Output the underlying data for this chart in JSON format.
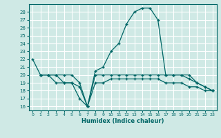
{
  "xlabel": "Humidex (Indice chaleur)",
  "ylabel": "",
  "bg_color": "#cfe9e5",
  "line_color": "#006666",
  "grid_color": "#ffffff",
  "xlim": [
    -0.5,
    23.5
  ],
  "ylim": [
    15.5,
    29
  ],
  "yticks": [
    16,
    17,
    18,
    19,
    20,
    21,
    22,
    23,
    24,
    25,
    26,
    27,
    28
  ],
  "xticks": [
    0,
    1,
    2,
    3,
    4,
    5,
    6,
    7,
    8,
    9,
    10,
    11,
    12,
    13,
    14,
    15,
    16,
    17,
    18,
    19,
    20,
    21,
    22,
    23
  ],
  "series": [
    {
      "x": [
        0,
        1,
        2,
        3,
        4,
        5,
        6,
        7,
        8,
        9,
        10,
        11,
        12,
        13,
        14,
        15,
        16,
        17,
        18,
        19,
        20,
        21,
        22,
        23
      ],
      "y": [
        22,
        20,
        20,
        20,
        19,
        19,
        17,
        16,
        20.5,
        21,
        23,
        24,
        26.5,
        28,
        28.5,
        28.5,
        27,
        20,
        20,
        20,
        20,
        19,
        18.5,
        18
      ]
    },
    {
      "x": [
        1,
        2,
        3,
        4,
        5,
        6,
        7,
        8,
        9,
        10,
        11,
        12,
        13,
        14,
        15,
        16,
        17,
        18,
        19,
        20,
        21,
        22,
        23
      ],
      "y": [
        20,
        20,
        20,
        20,
        20,
        19,
        16,
        20,
        20,
        20,
        20,
        20,
        20,
        20,
        20,
        20,
        20,
        20,
        20,
        19.5,
        19,
        18.5,
        18
      ]
    },
    {
      "x": [
        1,
        2,
        3,
        4,
        5,
        6,
        7,
        8,
        9,
        10,
        11,
        12,
        13,
        14,
        15,
        16,
        17,
        18,
        19,
        20,
        21,
        22,
        23
      ],
      "y": [
        20,
        20,
        19,
        19,
        19,
        18.5,
        16,
        19,
        19,
        19.5,
        19.5,
        19.5,
        19.5,
        19.5,
        19.5,
        19.5,
        19,
        19,
        19,
        18.5,
        18.5,
        18,
        18
      ]
    }
  ]
}
